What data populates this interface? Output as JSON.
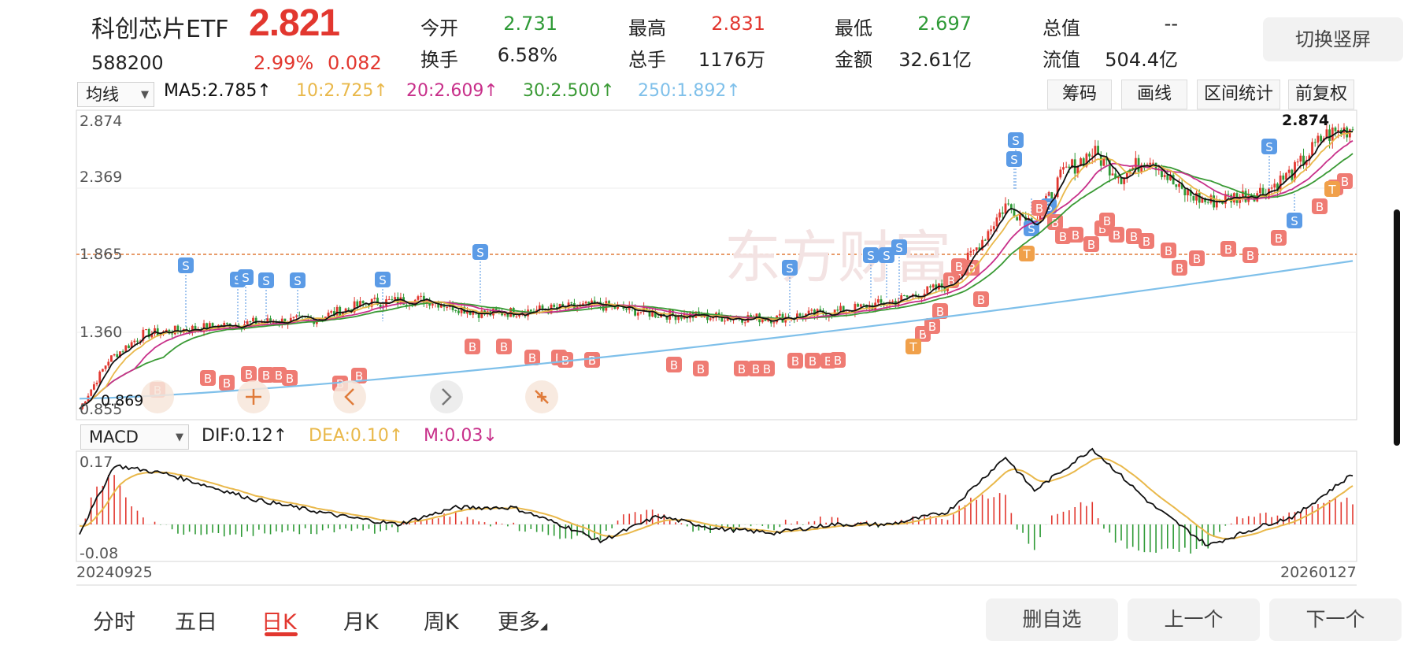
{
  "header": {
    "name": "科创芯片ETF",
    "price": "2.821",
    "code": "588200",
    "change_pct": "2.99%",
    "change": "0.082",
    "switch_label": "切换竖屏"
  },
  "stats": {
    "open_label": "今开",
    "open": "2.731",
    "high_label": "最高",
    "high": "2.831",
    "low_label": "最低",
    "low": "2.697",
    "total_label": "总值",
    "total": "--",
    "turnover_label": "换手",
    "turnover": "6.58%",
    "volume_label": "总手",
    "volume": "1176万",
    "amount_label": "金额",
    "amount": "32.61亿",
    "float_label": "流值",
    "float": "504.4亿"
  },
  "toolbar": {
    "indicator_select": "均线",
    "ma5": "MA5:2.785↑",
    "ma10": "10:2.725↑",
    "ma20": "20:2.609↑",
    "ma30": "30:2.500↑",
    "ma250": "250:1.892↑",
    "chips": "筹码",
    "draw": "画线",
    "range_stats": "区间统计",
    "adjust": "前复权"
  },
  "colors": {
    "up": "#e2372f",
    "down": "#2e9a36",
    "ma5": "#111111",
    "ma10": "#e9b84a",
    "ma20": "#c8308a",
    "ma30": "#3a9a35",
    "ma250": "#7fc0ea"
  },
  "main_chart": {
    "y_top": "2.874",
    "y_2": "2.369",
    "y_3": "1.865",
    "y_4": "1.360",
    "y_low": "0.855",
    "low_marker": "0.869",
    "high_marker": "2.874",
    "watermark": "东方财富"
  },
  "macd": {
    "select": "MACD",
    "dif": "DIF:0.12↑",
    "dea": "DEA:0.10↑",
    "m": "M:0.03↓",
    "y_top": "0.17",
    "y_bottom": "-0.08",
    "date_start": "20240925",
    "date_end": "20260127"
  },
  "trade_marks": {
    "buy": "B",
    "sell": "S",
    "t": "T"
  },
  "period_tabs": [
    "分时",
    "五日",
    "日K",
    "月K",
    "周K",
    "更多"
  ],
  "buttons": {
    "delete_fav": "删自选",
    "prev": "上一个",
    "next": "下一个"
  }
}
